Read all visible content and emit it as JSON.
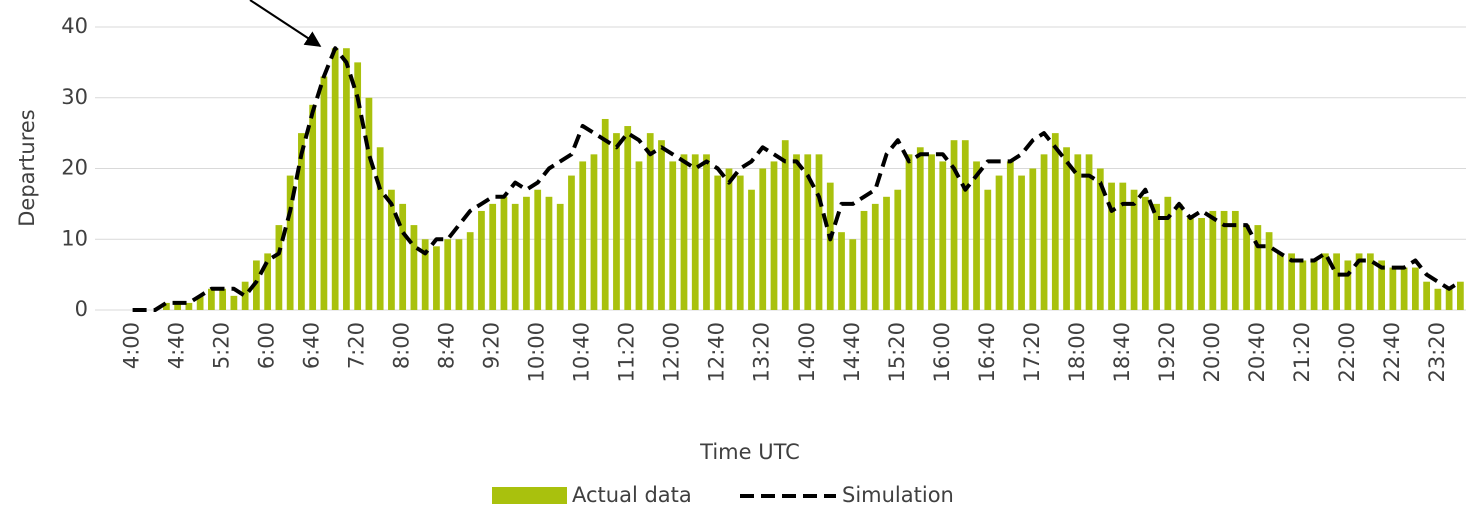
{
  "chart_data": {
    "type": "bar_line",
    "x_label": "Time UTC",
    "y_label": "Departures",
    "categories": [
      "4:00",
      null,
      null,
      null,
      "4:40",
      null,
      null,
      null,
      "5:20",
      null,
      null,
      null,
      "6:00",
      null,
      null,
      null,
      "6:40",
      null,
      null,
      null,
      "7:20",
      null,
      null,
      null,
      "8:00",
      null,
      null,
      null,
      "8:40",
      null,
      null,
      null,
      "9:20",
      null,
      null,
      null,
      "10:00",
      null,
      null,
      null,
      "10:40",
      null,
      null,
      null,
      "11:20",
      null,
      null,
      null,
      "12:00",
      null,
      null,
      null,
      "12:40",
      null,
      null,
      null,
      "13:20",
      null,
      null,
      null,
      "14:00",
      null,
      null,
      null,
      "14:40",
      null,
      null,
      null,
      "15:20",
      null,
      null,
      null,
      "16:00",
      null,
      null,
      null,
      "16:40",
      null,
      null,
      null,
      "17:20",
      null,
      null,
      null,
      "18:00",
      null,
      null,
      null,
      "18:40",
      null,
      null,
      null,
      "19:20",
      null,
      null,
      null,
      "20:00",
      null,
      null,
      null,
      "20:40",
      null,
      null,
      null,
      "21:20",
      null,
      null,
      null,
      "22:00",
      null,
      null,
      null,
      "22:40",
      null,
      null,
      null,
      "23:20",
      null,
      null
    ],
    "series": [
      {
        "name": "Actual data",
        "kind": "bar",
        "color": "#a9c10d",
        "values": [
          0,
          0,
          0,
          1,
          1,
          1,
          2,
          3,
          3,
          2,
          4,
          7,
          8,
          12,
          19,
          25,
          29,
          33,
          37,
          37,
          35,
          30,
          23,
          17,
          15,
          12,
          10,
          9,
          10,
          10,
          11,
          14,
          15,
          16,
          15,
          16,
          17,
          16,
          15,
          19,
          21,
          22,
          27,
          25,
          26,
          21,
          25,
          24,
          21,
          22,
          22,
          22,
          19,
          20,
          19,
          17,
          20,
          21,
          24,
          22,
          22,
          22,
          18,
          11,
          10,
          14,
          15,
          16,
          17,
          22,
          23,
          22,
          21,
          24,
          24,
          21,
          17,
          19,
          21,
          19,
          20,
          22,
          25,
          23,
          22,
          22,
          20,
          18,
          18,
          17,
          16,
          15,
          16,
          15,
          13,
          13,
          14,
          14,
          14,
          12,
          12,
          11,
          8,
          8,
          7,
          7,
          8,
          8,
          7,
          8,
          8,
          7,
          6,
          6,
          6,
          4,
          3,
          3,
          4
        ]
      },
      {
        "name": "Simulation",
        "kind": "line",
        "color": "#000000",
        "values": [
          0,
          0,
          0,
          1,
          1,
          1,
          2,
          3,
          3,
          3,
          2,
          4,
          7,
          8,
          14,
          22,
          28,
          33,
          37,
          35,
          30,
          22,
          17,
          15,
          11,
          9,
          8,
          10,
          10,
          12,
          14,
          15,
          16,
          16,
          18,
          17,
          18,
          20,
          21,
          22,
          26,
          25,
          24,
          23,
          25,
          24,
          22,
          23,
          22,
          21,
          20,
          21,
          20,
          18,
          20,
          21,
          23,
          22,
          21,
          21,
          19,
          16,
          10,
          15,
          15,
          16,
          17,
          22,
          24,
          21,
          22,
          22,
          22,
          20,
          17,
          19,
          21,
          21,
          21,
          22,
          24,
          25,
          23,
          21,
          19,
          19,
          18,
          14,
          15,
          15,
          17,
          13,
          13,
          15,
          13,
          14,
          13,
          12,
          12,
          12,
          9,
          9,
          8,
          7,
          7,
          7,
          8,
          5,
          5,
          7,
          7,
          6,
          6,
          6,
          7,
          5,
          4,
          3,
          4
        ]
      }
    ],
    "ylim": [
      0,
      40
    ],
    "yticks": [
      0,
      10,
      20,
      30,
      40
    ],
    "grid": true
  }
}
